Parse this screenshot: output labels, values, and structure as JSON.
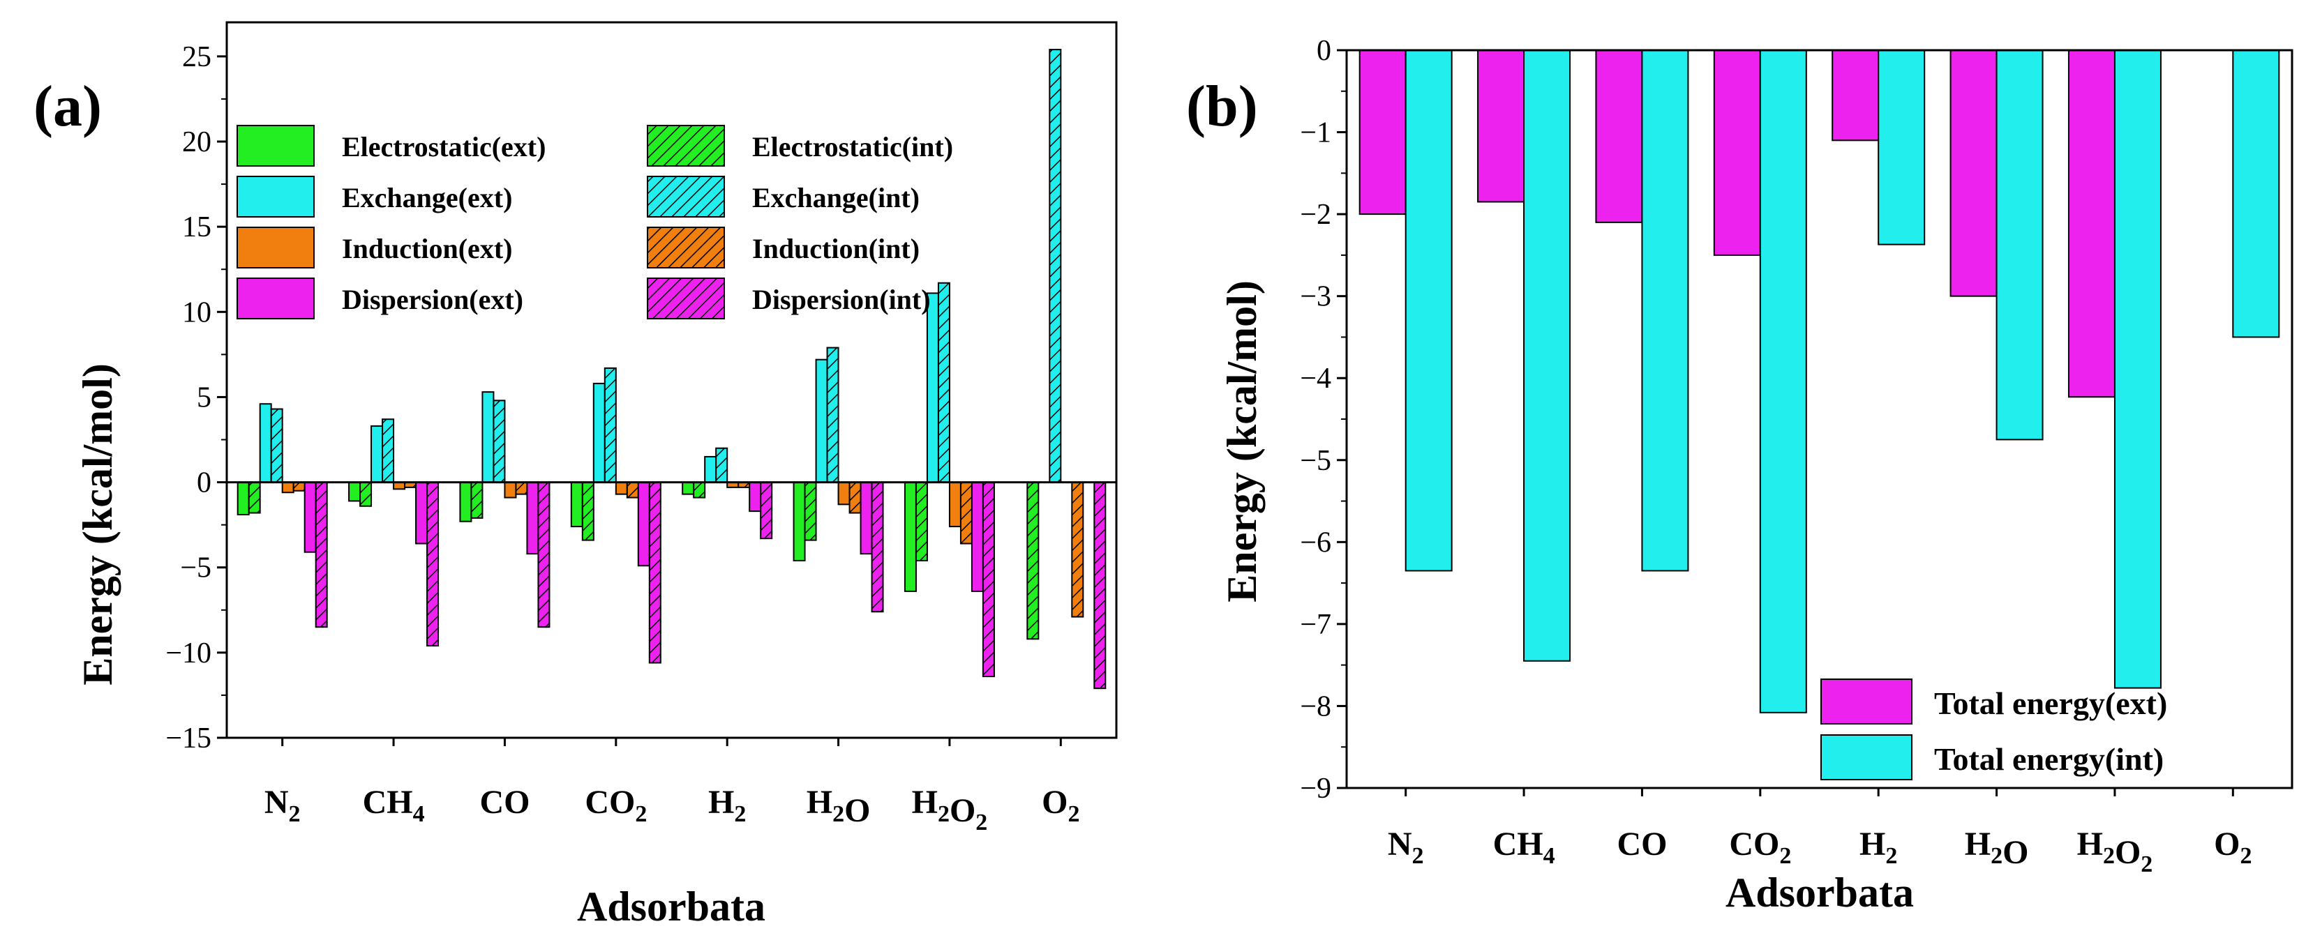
{
  "chart_data": [
    {
      "panel": "(a)",
      "type": "bar",
      "xlabel": "Adsorbata",
      "ylabel": "Energy (kcal/mol)",
      "ylim": [
        -15,
        27
      ],
      "yticks": [
        -15,
        -10,
        -5,
        0,
        5,
        10,
        15,
        20,
        25
      ],
      "categories": [
        {
          "base": "N",
          "sub": "2",
          "parts": [
            [
              "N",
              ""
            ],
            [
              "2",
              "sub"
            ]
          ]
        },
        {
          "base": "CH",
          "sub": "4",
          "parts": [
            [
              "CH",
              ""
            ],
            [
              "4",
              "sub"
            ]
          ]
        },
        {
          "base": "CO",
          "sub": "",
          "parts": [
            [
              "CO",
              ""
            ]
          ]
        },
        {
          "base": "CO",
          "sub": "2",
          "parts": [
            [
              "CO",
              ""
            ],
            [
              "2",
              "sub"
            ]
          ]
        },
        {
          "base": "H",
          "sub": "2",
          "parts": [
            [
              "H",
              ""
            ],
            [
              "2",
              "sub"
            ]
          ]
        },
        {
          "base": "H2O",
          "sub": "",
          "parts": [
            [
              "H",
              ""
            ],
            [
              "2",
              "sub"
            ],
            [
              "O",
              ""
            ]
          ]
        },
        {
          "base": "H2O2",
          "sub": "",
          "parts": [
            [
              "H",
              ""
            ],
            [
              "2",
              "sub"
            ],
            [
              "O",
              ""
            ],
            [
              "2",
              "sub"
            ]
          ]
        },
        {
          "base": "O",
          "sub": "2",
          "parts": [
            [
              "O",
              ""
            ],
            [
              "2",
              "sub"
            ]
          ]
        }
      ],
      "series": [
        {
          "name": "Electrostatic(ext)",
          "color": "#22ee22",
          "hatch": false,
          "values": [
            -1.9,
            -1.1,
            -2.3,
            -2.6,
            -0.7,
            -4.6,
            -6.4,
            null
          ]
        },
        {
          "name": "Electrostatic(int)",
          "color": "#22ee22",
          "hatch": true,
          "values": [
            -1.8,
            -1.4,
            -2.1,
            -3.4,
            -0.9,
            -3.4,
            -4.6,
            -9.2
          ]
        },
        {
          "name": "Exchange(ext)",
          "color": "#22eeee",
          "hatch": false,
          "values": [
            4.6,
            3.3,
            5.3,
            5.8,
            1.5,
            7.2,
            11.1,
            null
          ]
        },
        {
          "name": "Exchange(int)",
          "color": "#22eeee",
          "hatch": true,
          "values": [
            4.3,
            3.7,
            4.8,
            6.7,
            2.0,
            7.9,
            11.7,
            25.4
          ]
        },
        {
          "name": "Induction(ext)",
          "color": "#f07f10",
          "hatch": false,
          "values": [
            -0.6,
            -0.4,
            -0.9,
            -0.7,
            -0.3,
            -1.3,
            -2.6,
            null
          ]
        },
        {
          "name": "Induction(int)",
          "color": "#f07f10",
          "hatch": true,
          "values": [
            -0.5,
            -0.3,
            -0.7,
            -0.9,
            -0.3,
            -1.8,
            -3.6,
            -7.9
          ]
        },
        {
          "name": "Dispersion(ext)",
          "color": "#ee22ee",
          "hatch": false,
          "values": [
            -4.1,
            -3.6,
            -4.2,
            -4.9,
            -1.7,
            -4.2,
            -6.4,
            null
          ]
        },
        {
          "name": "Dispersion(int)",
          "color": "#ee22ee",
          "hatch": true,
          "values": [
            -8.5,
            -9.6,
            -8.5,
            -10.6,
            -3.3,
            -7.6,
            -11.4,
            -12.1
          ]
        }
      ]
    },
    {
      "panel": "(b)",
      "type": "bar",
      "xlabel": "Adsorbata",
      "ylabel": "Energy (kcal/mol)",
      "ylim": [
        -9,
        0
      ],
      "yticks": [
        0,
        -1,
        -2,
        -3,
        -4,
        -5,
        -6,
        -7,
        -8,
        -9
      ],
      "categories": [
        {
          "base": "N",
          "sub": "2",
          "parts": [
            [
              "N",
              ""
            ],
            [
              "2",
              "sub"
            ]
          ]
        },
        {
          "base": "CH",
          "sub": "4",
          "parts": [
            [
              "CH",
              ""
            ],
            [
              "4",
              "sub"
            ]
          ]
        },
        {
          "base": "CO",
          "sub": "",
          "parts": [
            [
              "CO",
              ""
            ]
          ]
        },
        {
          "base": "CO",
          "sub": "2",
          "parts": [
            [
              "CO",
              ""
            ],
            [
              "2",
              "sub"
            ]
          ]
        },
        {
          "base": "H",
          "sub": "2",
          "parts": [
            [
              "H",
              ""
            ],
            [
              "2",
              "sub"
            ]
          ]
        },
        {
          "base": "H2O",
          "sub": "",
          "parts": [
            [
              "H",
              ""
            ],
            [
              "2",
              "sub"
            ],
            [
              "O",
              ""
            ]
          ]
        },
        {
          "base": "H2O2",
          "sub": "",
          "parts": [
            [
              "H",
              ""
            ],
            [
              "2",
              "sub"
            ],
            [
              "O",
              ""
            ],
            [
              "2",
              "sub"
            ]
          ]
        },
        {
          "base": "O",
          "sub": "2",
          "parts": [
            [
              "O",
              ""
            ],
            [
              "2",
              "sub"
            ]
          ]
        }
      ],
      "series": [
        {
          "name": "Total energy(ext)",
          "color": "#ee22ee",
          "hatch": false,
          "values": [
            -2.0,
            -1.85,
            -2.1,
            -2.5,
            -1.1,
            -3.0,
            -4.23,
            null
          ]
        },
        {
          "name": "Total energy(int)",
          "color": "#22eeee",
          "hatch": false,
          "values": [
            -6.35,
            -7.45,
            -6.35,
            -8.08,
            -2.37,
            -4.75,
            -7.78,
            -3.5
          ]
        }
      ]
    }
  ]
}
